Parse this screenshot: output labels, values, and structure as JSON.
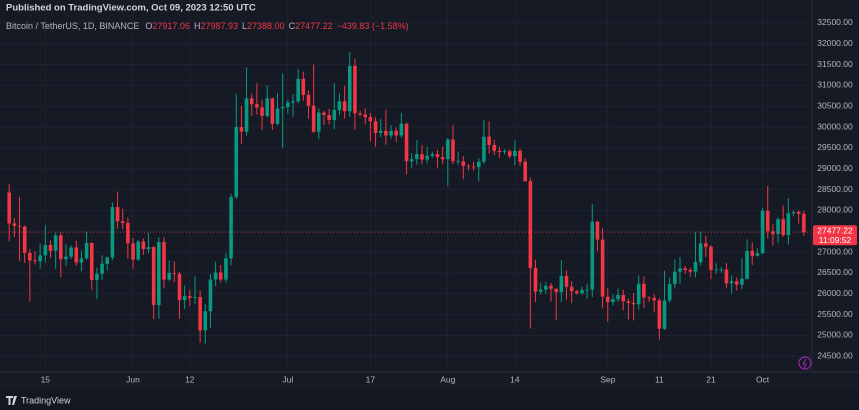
{
  "header": {
    "published": "Published on TradingView.com, Oct 09, 2023 12:50 UTC"
  },
  "chart_data": {
    "type": "candlestick",
    "title": "Bitcoin / TetherUS, 1D, BINANCE",
    "legend": [
      {
        "key": "O",
        "text": "27917.06"
      },
      {
        "key": "H",
        "text": "27987.93"
      },
      {
        "key": "L",
        "text": "27388.00"
      },
      {
        "key": "C",
        "text": "27477.22"
      }
    ],
    "change": "−439.83 (−1.58%)",
    "up_color": "#089981",
    "down_color": "#f23645",
    "x": [
      "May 08",
      "May 09",
      "May 10",
      "May 11",
      "May 12",
      "May 13",
      "May 14",
      "May 15",
      "May 16",
      "May 17",
      "May 18",
      "May 19",
      "May 20",
      "May 21",
      "May 22",
      "May 23",
      "May 24",
      "May 25",
      "May 26",
      "May 27",
      "May 28",
      "May 29",
      "May 30",
      "May 31",
      "Jun 01",
      "Jun 02",
      "Jun 03",
      "Jun 04",
      "Jun 05",
      "Jun 06",
      "Jun 07",
      "Jun 08",
      "Jun 09",
      "Jun 10",
      "Jun 11",
      "Jun 12",
      "Jun 13",
      "Jun 14",
      "Jun 15",
      "Jun 16",
      "Jun 17",
      "Jun 18",
      "Jun 19",
      "Jun 20",
      "Jun 21",
      "Jun 22",
      "Jun 23",
      "Jun 24",
      "Jun 25",
      "Jun 26",
      "Jun 27",
      "Jun 28",
      "Jun 29",
      "Jun 30",
      "Jul 01",
      "Jul 02",
      "Jul 03",
      "Jul 04",
      "Jul 05",
      "Jul 06",
      "Jul 07",
      "Jul 08",
      "Jul 09",
      "Jul 10",
      "Jul 11",
      "Jul 12",
      "Jul 13",
      "Jul 14",
      "Jul 15",
      "Jul 16",
      "Jul 17",
      "Jul 18",
      "Jul 19",
      "Jul 20",
      "Jul 21",
      "Jul 22",
      "Jul 23",
      "Jul 24",
      "Jul 25",
      "Jul 26",
      "Jul 27",
      "Jul 28",
      "Jul 29",
      "Jul 30",
      "Jul 31",
      "Aug 01",
      "Aug 02",
      "Aug 03",
      "Aug 04",
      "Aug 05",
      "Aug 06",
      "Aug 07",
      "Aug 08",
      "Aug 09",
      "Aug 10",
      "Aug 11",
      "Aug 12",
      "Aug 13",
      "Aug 14",
      "Aug 15",
      "Aug 16",
      "Aug 17",
      "Aug 18",
      "Aug 19",
      "Aug 20",
      "Aug 21",
      "Aug 22",
      "Aug 23",
      "Aug 24",
      "Aug 25",
      "Aug 26",
      "Aug 27",
      "Aug 28",
      "Aug 29",
      "Aug 30",
      "Aug 31",
      "Sep 01",
      "Sep 02",
      "Sep 03",
      "Sep 04",
      "Sep 05",
      "Sep 06",
      "Sep 07",
      "Sep 08",
      "Sep 09",
      "Sep 10",
      "Sep 11",
      "Sep 12",
      "Sep 13",
      "Sep 14",
      "Sep 15",
      "Sep 16",
      "Sep 17",
      "Sep 18",
      "Sep 19",
      "Sep 20",
      "Sep 21",
      "Sep 22",
      "Sep 23",
      "Sep 24",
      "Sep 25",
      "Sep 26",
      "Sep 27",
      "Sep 28",
      "Sep 29",
      "Sep 30",
      "Oct 01",
      "Oct 02",
      "Oct 03",
      "Oct 04",
      "Oct 05",
      "Oct 06",
      "Oct 07",
      "Oct 08",
      "Oct 09"
    ],
    "open": [
      28430,
      27690,
      27630,
      27610,
      26980,
      26800,
      26780,
      26920,
      27170,
      27030,
      27400,
      26830,
      26890,
      27110,
      26750,
      26850,
      27220,
      26330,
      26480,
      26720,
      26870,
      28080,
      27740,
      27700,
      27210,
      26820,
      27250,
      27070,
      27120,
      25730,
      27240,
      26340,
      26500,
      26480,
      25850,
      25940,
      25900,
      25920,
      25120,
      25580,
      26340,
      26510,
      26340,
      26850,
      28320,
      30000,
      29890,
      30690,
      30550,
      30470,
      30270,
      30690,
      30080,
      30450,
      30480,
      30590,
      30620,
      31160,
      30770,
      30510,
      29890,
      30350,
      30290,
      30170,
      30410,
      30620,
      30380,
      31470,
      30330,
      30300,
      30240,
      30140,
      29860,
      29910,
      29800,
      29910,
      29800,
      30080,
      29180,
      29230,
      29350,
      29220,
      29310,
      29350,
      29280,
      29230,
      29700,
      29180,
      29180,
      29070,
      29050,
      29040,
      29170,
      29770,
      29570,
      29430,
      29400,
      29420,
      29300,
      29430,
      29170,
      28700,
      26620,
      26050,
      26100,
      26190,
      26120,
      26040,
      26430,
      26170,
      26060,
      26010,
      26090,
      26100,
      27730,
      27300,
      25930,
      25800,
      25870,
      25970,
      25820,
      25780,
      25750,
      26240,
      25910,
      25900,
      25840,
      25160,
      25840,
      26230,
      26530,
      26610,
      26570,
      26530,
      26760,
      27210,
      27130,
      26570,
      26580,
      26580,
      26250,
      26300,
      26220,
      26360,
      27030,
      26910,
      26970,
      27990,
      27500,
      27430,
      27790,
      27410,
      27930,
      27960,
      27917.06
    ],
    "high": [
      28630,
      27820,
      28330,
      27640,
      27080,
      27020,
      27200,
      27650,
      27280,
      27470,
      27480,
      27190,
      27160,
      27270,
      27040,
      27490,
      27230,
      26630,
      26920,
      26890,
      28190,
      28450,
      28040,
      27830,
      27340,
      27290,
      27330,
      27460,
      27140,
      27360,
      27360,
      26800,
      26780,
      26530,
      26200,
      26100,
      26420,
      26080,
      25750,
      26480,
      26770,
      26690,
      26980,
      28400,
      30800,
      30510,
      31430,
      30800,
      31050,
      30660,
      31000,
      30710,
      30820,
      31280,
      30660,
      30790,
      31390,
      31330,
      30880,
      31500,
      30450,
      30390,
      30440,
      31050,
      30810,
      30990,
      31800,
      31640,
      30390,
      30450,
      30340,
      30240,
      30190,
      30410,
      30050,
      29990,
      30340,
      30100,
      29370,
      29690,
      29570,
      29530,
      29410,
      29450,
      29530,
      29740,
      30050,
      29410,
      29310,
      29110,
      29170,
      29250,
      30180,
      30140,
      29700,
      29530,
      29470,
      29460,
      29680,
      29480,
      29250,
      28790,
      26820,
      26260,
      26290,
      26260,
      26130,
      26800,
      26560,
      26300,
      26090,
      26170,
      26240,
      28150,
      27760,
      27580,
      26130,
      25980,
      26120,
      26090,
      25880,
      26020,
      26440,
      26420,
      25940,
      25990,
      25890,
      26550,
      26390,
      26820,
      26880,
      26670,
      26620,
      27480,
      27490,
      27390,
      27170,
      26730,
      26640,
      26740,
      26440,
      26390,
      26850,
      27300,
      27230,
      27090,
      28070,
      28590,
      27670,
      27830,
      28120,
      28290,
      28000,
      28000,
      27987.93
    ],
    "low": [
      27260,
      27360,
      26790,
      26740,
      25810,
      26700,
      26600,
      26750,
      26860,
      26600,
      26400,
      26670,
      26830,
      26670,
      26540,
      26810,
      26090,
      25870,
      26330,
      26560,
      26810,
      27560,
      27550,
      26840,
      26600,
      26790,
      26930,
      26970,
      25390,
      25400,
      26130,
      26310,
      26280,
      25400,
      25640,
      25710,
      25750,
      24820,
      24800,
      25180,
      26180,
      26270,
      26260,
      26680,
      28270,
      29600,
      29800,
      30270,
      30300,
      29930,
      30230,
      29930,
      30040,
      29500,
      30320,
      30250,
      30570,
      30630,
      30200,
      29860,
      29710,
      30050,
      30060,
      29950,
      30290,
      30200,
      30250,
      29940,
      30250,
      30070,
      29660,
      29520,
      29760,
      29580,
      29720,
      29640,
      29740,
      28860,
      29020,
      29100,
      29110,
      29130,
      29260,
      29030,
      29110,
      28590,
      29110,
      29100,
      28750,
      28960,
      28960,
      28700,
      29110,
      29360,
      29330,
      29260,
      29350,
      29250,
      29080,
      29070,
      28700,
      25170,
      25800,
      25980,
      25990,
      25810,
      25370,
      25800,
      25860,
      25770,
      25980,
      25980,
      25880,
      25920,
      27020,
      25660,
      25330,
      25720,
      25810,
      25600,
      25380,
      25360,
      25620,
      25650,
      25800,
      25560,
      24900,
      25130,
      25780,
      26130,
      26230,
      26480,
      26410,
      26390,
      26670,
      26880,
      26350,
      26480,
      26500,
      26130,
      26000,
      26080,
      26110,
      26340,
      26690,
      26890,
      26960,
      27330,
      27160,
      27210,
      27370,
      27180,
      27860,
      27680,
      27388
    ],
    "close": [
      27690,
      27630,
      27610,
      26980,
      26800,
      26780,
      26920,
      27170,
      27030,
      27400,
      26830,
      26890,
      27110,
      26750,
      26850,
      27220,
      26330,
      26480,
      26720,
      26870,
      28080,
      27740,
      27700,
      27210,
      26820,
      27250,
      27070,
      27120,
      25730,
      27240,
      26340,
      26500,
      26480,
      25850,
      25940,
      25900,
      25920,
      25120,
      25580,
      26340,
      26510,
      26340,
      26850,
      28320,
      30000,
      29890,
      30690,
      30550,
      30470,
      30270,
      30690,
      30080,
      30450,
      30480,
      30590,
      30620,
      31160,
      30770,
      30510,
      29890,
      30350,
      30290,
      30170,
      30410,
      30620,
      30380,
      31470,
      30330,
      30300,
      30240,
      30140,
      29860,
      29910,
      29800,
      29910,
      29800,
      30080,
      29180,
      29230,
      29350,
      29220,
      29310,
      29350,
      29280,
      29230,
      29700,
      29180,
      29180,
      29070,
      29050,
      29040,
      29170,
      29770,
      29570,
      29430,
      29400,
      29420,
      29300,
      29430,
      29170,
      28700,
      26620,
      26050,
      26100,
      26190,
      26120,
      26040,
      26430,
      26170,
      26060,
      26010,
      26090,
      26100,
      27730,
      27300,
      25930,
      25800,
      25870,
      25970,
      25820,
      25780,
      25750,
      26240,
      25910,
      25900,
      25840,
      25160,
      25840,
      26230,
      26530,
      26610,
      26570,
      26530,
      26760,
      27210,
      27130,
      26570,
      26580,
      26580,
      26250,
      26300,
      26220,
      26360,
      27030,
      26910,
      26970,
      27990,
      27500,
      27430,
      27790,
      27410,
      27930,
      27960,
      27917.06,
      27477.22
    ],
    "ylim": [
      24050,
      33050
    ],
    "yticks": [
      {
        "value": 24500,
        "label": "24500.00"
      },
      {
        "value": 25000,
        "label": "25000.00"
      },
      {
        "value": 25500,
        "label": "25500.00"
      },
      {
        "value": 26000,
        "label": "26000.00"
      },
      {
        "value": 26500,
        "label": "26500.00"
      },
      {
        "value": 27000,
        "label": "27000.00"
      },
      {
        "value": 27500,
        "label": "27500.00"
      },
      {
        "value": 28000,
        "label": "28000.00"
      },
      {
        "value": 28500,
        "label": "28500.00"
      },
      {
        "value": 29000,
        "label": "29000.00"
      },
      {
        "value": 29500,
        "label": "29500.00"
      },
      {
        "value": 30000,
        "label": "30000.00"
      },
      {
        "value": 30500,
        "label": "30500.00"
      },
      {
        "value": 31000,
        "label": "31000.00"
      },
      {
        "value": 31500,
        "label": "31500.00"
      },
      {
        "value": 32000,
        "label": "32000.00"
      },
      {
        "value": 32500,
        "label": "32500.00"
      }
    ],
    "xticks": [
      {
        "value": "May 15",
        "label": "15"
      },
      {
        "value": "Jun 01",
        "label": "Jun"
      },
      {
        "value": "Jun 12",
        "label": "12"
      },
      {
        "value": "Jul 01",
        "label": "Jul"
      },
      {
        "value": "Jul 17",
        "label": "17"
      },
      {
        "value": "Aug 01",
        "label": "Aug"
      },
      {
        "value": "Aug 14",
        "label": "14"
      },
      {
        "value": "Sep 01",
        "label": "Sep"
      },
      {
        "value": "Sep 11",
        "label": "11"
      },
      {
        "value": "Sep 21",
        "label": "21"
      },
      {
        "value": "Oct 01",
        "label": "Oct"
      }
    ],
    "last_price_label": "27477.22",
    "countdown": "11:09:52",
    "grid": true
  },
  "footer": {
    "brand": "TradingView"
  }
}
